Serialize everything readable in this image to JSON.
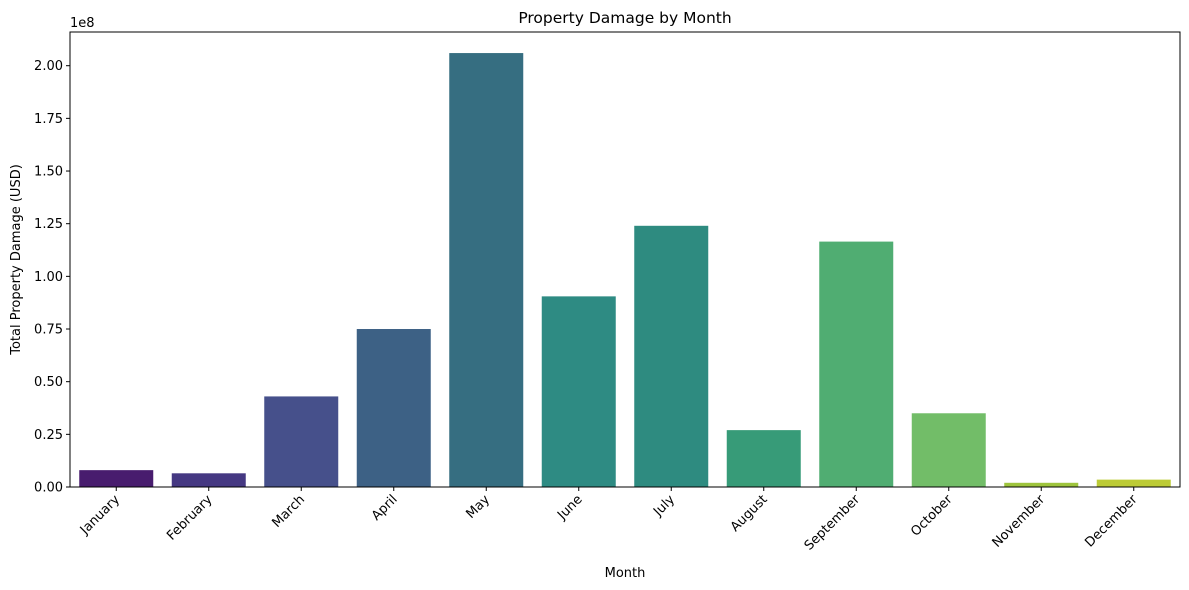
{
  "chart_data": {
    "type": "bar",
    "title": "Property Damage by Month",
    "xlabel": "Month",
    "ylabel": "Total Property Damage (USD)",
    "y_offset_label": "1e8",
    "y_scale": 100000000,
    "ylim": [
      0,
      2.16
    ],
    "yticks": [
      0.0,
      0.25,
      0.5,
      0.75,
      1.0,
      1.25,
      1.5,
      1.75,
      2.0
    ],
    "ytick_labels": [
      "0.00",
      "0.25",
      "0.50",
      "0.75",
      "1.00",
      "1.25",
      "1.50",
      "1.75",
      "2.00"
    ],
    "categories": [
      "January",
      "February",
      "March",
      "April",
      "May",
      "June",
      "July",
      "August",
      "September",
      "October",
      "November",
      "December"
    ],
    "values": [
      0.08,
      0.065,
      0.43,
      0.75,
      2.06,
      0.905,
      1.24,
      0.27,
      1.165,
      0.35,
      0.02,
      0.035
    ],
    "colors": [
      "#482173",
      "#433e85",
      "#472f7d",
      "#3e4989",
      "#355f8d",
      "#2e6f8e",
      "#277f8e",
      "#21918c",
      "#1fa187",
      "#2db27d",
      "#4ac16d",
      "#addc30"
    ],
    "bar_colors": [
      "#481c6e",
      "#453882",
      "#46508b",
      "#3d6185",
      "#366e81",
      "#2e8b83",
      "#2e8b80",
      "#379b78",
      "#50ad72",
      "#72bd68",
      "#9ec43d",
      "#bccb36"
    ],
    "grid": false,
    "legend": "none"
  }
}
